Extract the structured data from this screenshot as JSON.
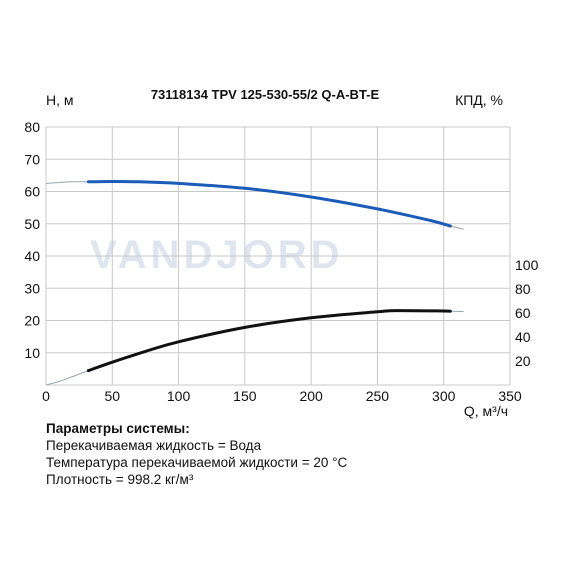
{
  "watermark": "VANDJORD",
  "chart_data": {
    "type": "line",
    "title": "73118134 TPV 125-530-55/2 Q-A-BT-E",
    "xlabel": "Q, м³/ч",
    "ylabel_left": "Н, м",
    "ylabel_right": "КПД, %",
    "xlim": [
      0,
      350
    ],
    "ylim_left": [
      0,
      80
    ],
    "ylim_right": [
      0,
      100
    ],
    "x_ticks": [
      "0",
      "50",
      "100",
      "150",
      "200",
      "250",
      "300",
      "350"
    ],
    "y_left_ticks": [
      "10",
      "20",
      "30",
      "40",
      "50",
      "60",
      "70",
      "80"
    ],
    "y_right_ticks": [
      "20",
      "40",
      "60",
      "80",
      "100"
    ],
    "grid": true,
    "colors": {
      "head": "#1a5cb8",
      "efficiency": "#111111",
      "extension": "#9aa3ad",
      "grid": "#c8c8c8"
    },
    "series": [
      {
        "key": "head",
        "axis": "left",
        "x": [
          0,
          10,
          20,
          32,
          50,
          70,
          100,
          150,
          200,
          250,
          290,
          305
        ],
        "values": [
          62.5,
          62.8,
          63.0,
          63.0,
          63.1,
          63.0,
          62.5,
          61.0,
          58.3,
          54.6,
          51.0,
          49.3
        ],
        "ext_before": [
          [
            0,
            62.5
          ],
          [
            10,
            62.8
          ],
          [
            20,
            63.0
          ],
          [
            32,
            63.0
          ]
        ],
        "ext_after": [
          [
            305,
            49.3
          ],
          [
            315,
            48.3
          ]
        ]
      },
      {
        "key": "efficiency",
        "axis": "right",
        "x": [
          0,
          10,
          20,
          32,
          50,
          75,
          100,
          150,
          200,
          250,
          265,
          300,
          305
        ],
        "values": [
          0,
          3,
          7,
          12,
          19,
          28,
          36,
          48,
          56,
          61,
          62,
          61.7,
          61.5
        ],
        "ext_before": [
          [
            0,
            0
          ],
          [
            10,
            3
          ],
          [
            20,
            7
          ],
          [
            32,
            12
          ]
        ],
        "ext_after": [
          [
            305,
            61.5
          ],
          [
            315,
            61.2
          ]
        ]
      }
    ]
  },
  "params": {
    "header": "Параметры системы:",
    "lines": [
      "Перекачиваемая жидкость = Вода",
      "Температура перекачиваемой жидкости = 20 °C",
      "Плотность = 998.2 кг/м³"
    ]
  }
}
